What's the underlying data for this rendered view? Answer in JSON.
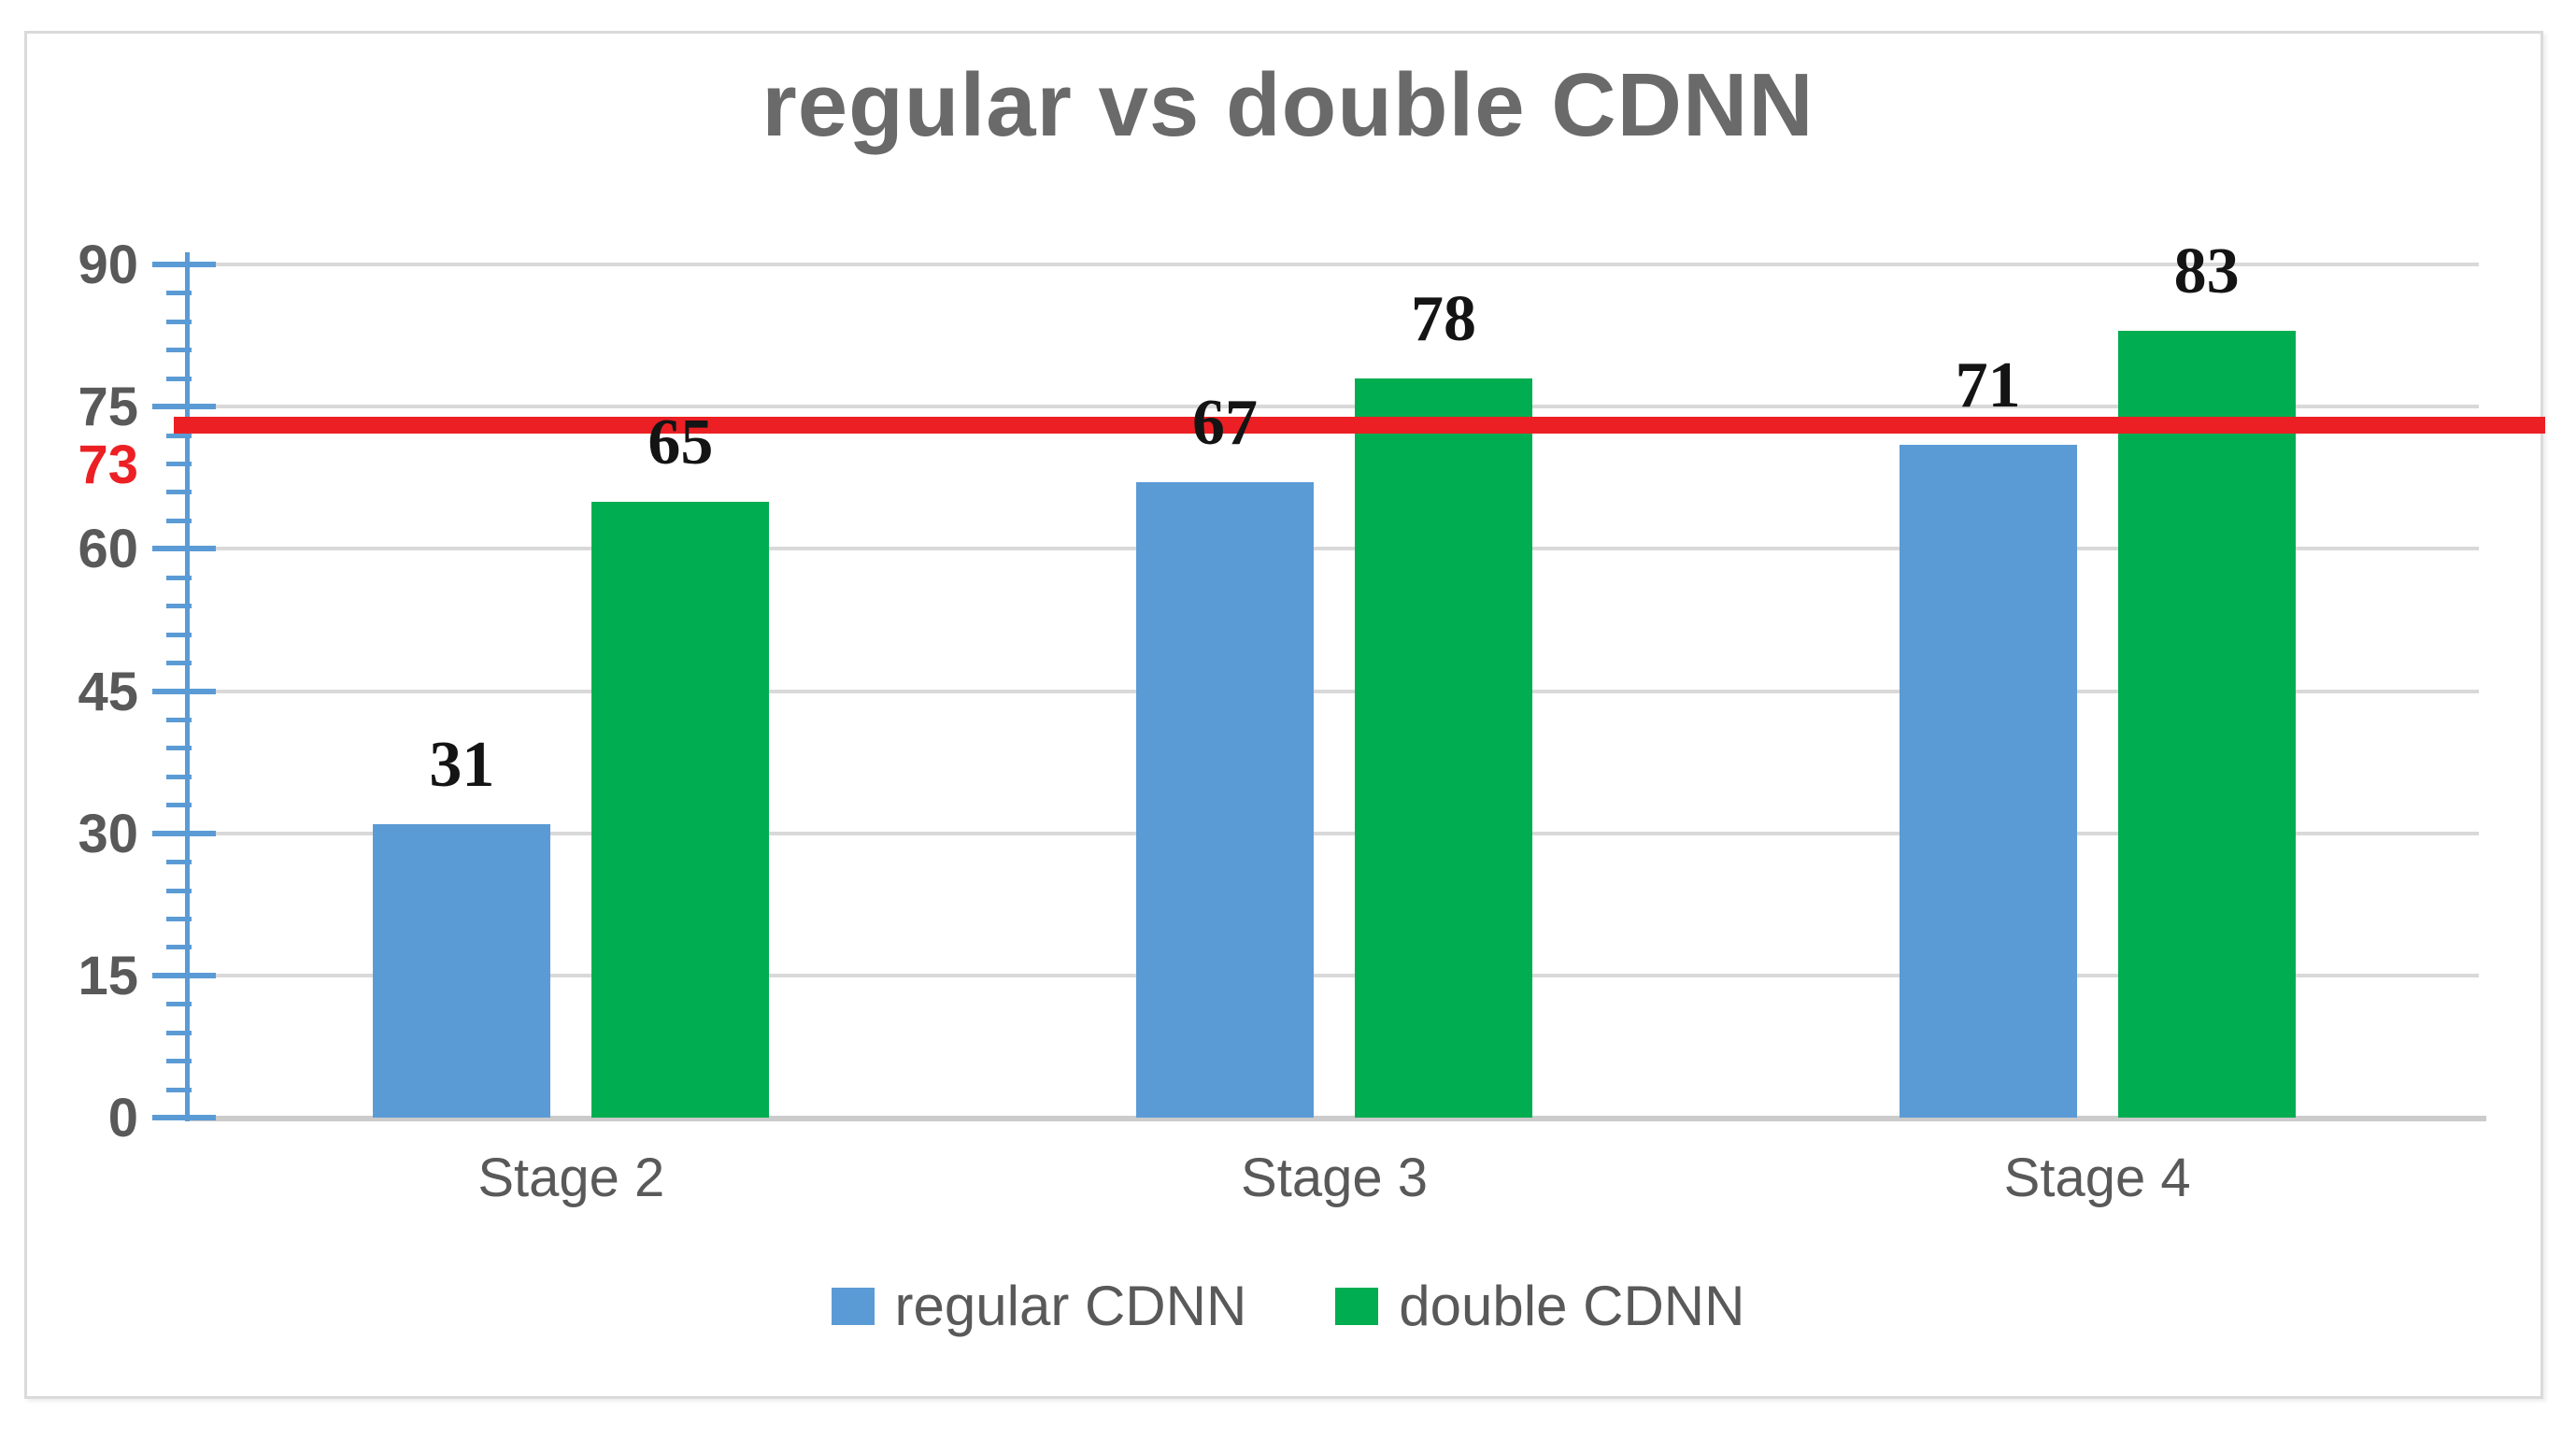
{
  "chart_data": {
    "type": "bar",
    "title": "regular vs double CDNN",
    "categories": [
      "Stage 2",
      "Stage 3",
      "Stage 4"
    ],
    "series": [
      {
        "name": "regular CDNN",
        "color": "#5B9BD5",
        "values": [
          31,
          67,
          71
        ]
      },
      {
        "name": "double CDNN",
        "color": "#00AD50",
        "values": [
          65,
          78,
          83
        ]
      }
    ],
    "data_labels": [
      "31",
      "65",
      "67",
      "78",
      "71",
      "83"
    ],
    "ref_line": {
      "value": 73,
      "label": "73",
      "color": "#EC2024"
    },
    "y_axis": {
      "ticks": [
        0,
        15,
        30,
        45,
        60,
        75,
        90
      ],
      "minor_step": 3,
      "ylim": [
        0,
        90
      ],
      "axis_color": "#5B9BD5",
      "label_color": "#595959"
    },
    "gridlines": {
      "horizontal": true,
      "color": "#D9D9D9"
    },
    "legend_position": "bottom",
    "title_color": "#6A6A6A"
  }
}
